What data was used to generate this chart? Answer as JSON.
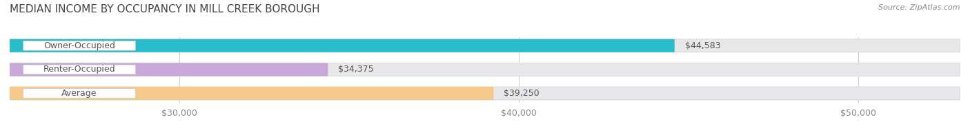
{
  "title": "MEDIAN INCOME BY OCCUPANCY IN MILL CREEK BOROUGH",
  "source": "Source: ZipAtlas.com",
  "categories": [
    "Owner-Occupied",
    "Renter-Occupied",
    "Average"
  ],
  "values": [
    44583,
    34375,
    39250
  ],
  "bar_colors": [
    "#2bbccc",
    "#c8a8d8",
    "#f5c98a"
  ],
  "bar_bg_color": "#e8e8ea",
  "xmin": 25000,
  "xmax": 53000,
  "xticks": [
    30000,
    40000,
    50000
  ],
  "xtick_labels": [
    "$30,000",
    "$40,000",
    "$50,000"
  ],
  "value_labels": [
    "$44,583",
    "$34,375",
    "$39,250"
  ],
  "title_fontsize": 11,
  "label_fontsize": 9,
  "value_fontsize": 9,
  "source_fontsize": 8,
  "bar_height": 0.55,
  "bg_color": "#ffffff",
  "title_color": "#444444",
  "label_color": "#555555",
  "value_color": "#555555",
  "tick_color": "#888888",
  "source_color": "#888888"
}
